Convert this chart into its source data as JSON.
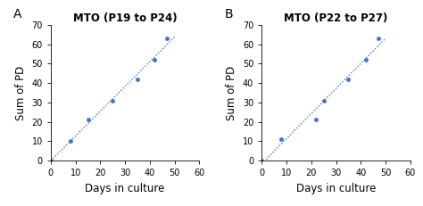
{
  "panel_A": {
    "title": "MTO (P19 to P24)",
    "x": [
      0,
      8,
      15,
      25,
      35,
      42,
      47
    ],
    "y": [
      0,
      10,
      21,
      31,
      42,
      52,
      63
    ]
  },
  "panel_B": {
    "title": "MTO (P22 to P27)",
    "x": [
      0,
      8,
      22,
      25,
      35,
      42,
      47
    ],
    "y": [
      0,
      11,
      21,
      31,
      42,
      52,
      63
    ]
  },
  "xlabel": "Days in culture",
  "ylabel": "Sum of PD",
  "line_color": "#4472C4",
  "marker_color": "#4472C4",
  "xlim": [
    0,
    60
  ],
  "ylim": [
    0,
    70
  ],
  "xticks": [
    0,
    10,
    20,
    30,
    40,
    50,
    60
  ],
  "yticks": [
    0,
    10,
    20,
    30,
    40,
    50,
    60,
    70
  ],
  "label_A": "A",
  "label_B": "B",
  "bg_color": "#ffffff"
}
